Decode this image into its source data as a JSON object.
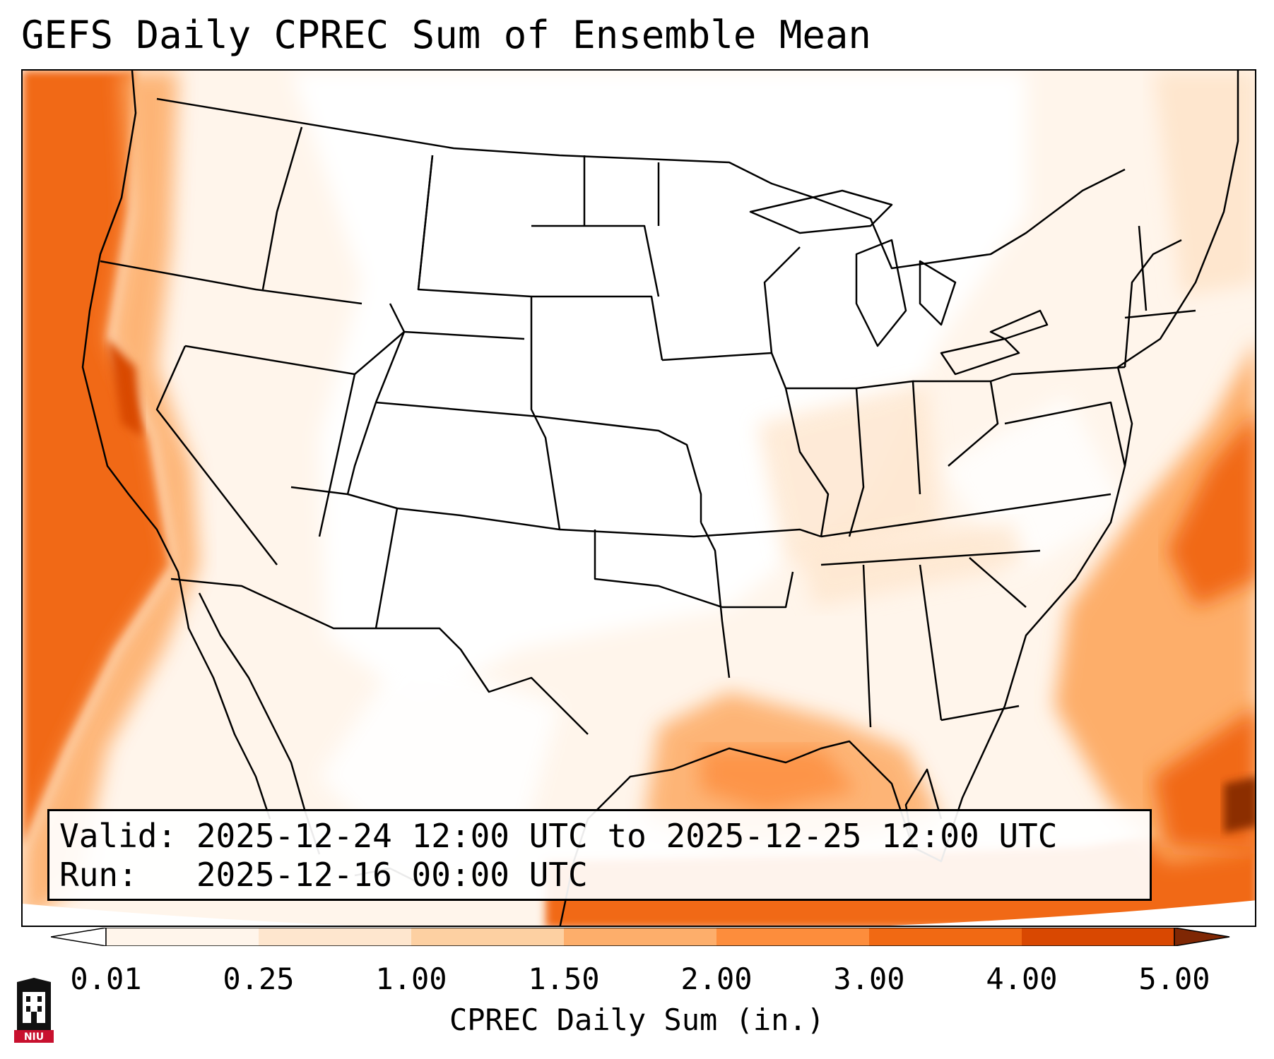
{
  "title": "GEFS Daily CPREC Sum of Ensemble Mean",
  "info": {
    "valid_line": "Valid: 2025-12-24 12:00 UTC to 2025-12-25 12:00 UTC",
    "run_line": "Run:   2025-12-16 00:00 UTC"
  },
  "colorbar": {
    "label": "CPREC Daily Sum (in.)",
    "ticks": [
      "0.01",
      "0.25",
      "1.00",
      "1.50",
      "2.00",
      "3.00",
      "4.00",
      "5.00"
    ],
    "colors": [
      "#fff5eb",
      "#fee6ce",
      "#fdd0a2",
      "#fdae6b",
      "#fd8d3c",
      "#f16913",
      "#d94801",
      "#8c2d04"
    ],
    "under_color": "#ffffff",
    "over_color": "#7f2704"
  },
  "logo": {
    "text": "NIU",
    "brand_color": "#c8102e"
  }
}
